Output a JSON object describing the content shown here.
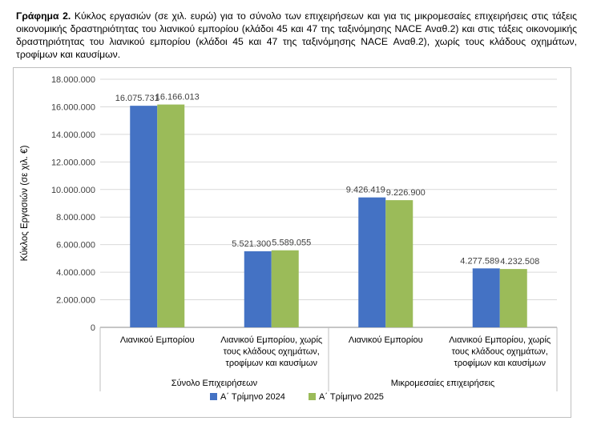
{
  "caption": {
    "label": "Γράφημα 2.",
    "text": "Κύκλος εργασιών (σε χιλ. ευρώ) για το σύνολο των επιχειρήσεων και για τις μικρομεσαίες επιχειρήσεις στις τάξεις οικονομικής δραστηριότητας του λιανικού εμπορίου (κλάδοι 45 και 47 της ταξινόμησης NACE Αναθ.2) και στις τάξεις οικονομικής δραστηριότητας του λιανικού εμπορίου (κλάδοι 45 και 47 της ταξινόμησης NACE Αναθ.2), χωρίς τους κλάδους οχημάτων, τροφίμων και καυσίμων."
  },
  "chart_data": {
    "type": "bar",
    "ylabel": "Κύκλος Εργασιών (σε χιλ. €)",
    "ylim": [
      0,
      18000000
    ],
    "yticks": [
      0,
      2000000,
      4000000,
      6000000,
      8000000,
      10000000,
      12000000,
      14000000,
      16000000,
      18000000
    ],
    "ytick_labels": [
      "0",
      "2.000.000",
      "4.000.000",
      "6.000.000",
      "8.000.000",
      "10.000.000",
      "12.000.000",
      "14.000.000",
      "16.000.000",
      "18.000.000"
    ],
    "categories": [
      [
        "Λιανικού Εμπορίου"
      ],
      [
        "Λιανικού Εμπορίου, χωρίς",
        "τους κλάδους οχημάτων,",
        "τροφίμων και καυσίμων"
      ],
      [
        "Λιανικού Εμπορίου"
      ],
      [
        "Λιανικού Εμπορίου, χωρίς",
        "τους κλάδους οχημάτων,",
        "τροφίμων και καυσίμων"
      ]
    ],
    "groups": [
      "Σύνολο Επιχειρήσεων",
      "Μικρομεσαίες επιχειρήσεις"
    ],
    "series": [
      {
        "name": "Α΄ Τρίμηνο 2024",
        "color": "#4472c4",
        "values": [
          16075731,
          5521300,
          9426419,
          4277589
        ],
        "labels": [
          "16.075.731",
          "5.521.300",
          "9.426.419",
          "4.277.589"
        ]
      },
      {
        "name": "Α΄ Τρίμηνο 2025",
        "color": "#9bbb59",
        "values": [
          16166013,
          5589055,
          9226900,
          4232508
        ],
        "labels": [
          "16.166.013",
          "5.589.055",
          "9.226.900",
          "4.232.508"
        ]
      }
    ],
    "grid": true,
    "legend": "bottom"
  }
}
